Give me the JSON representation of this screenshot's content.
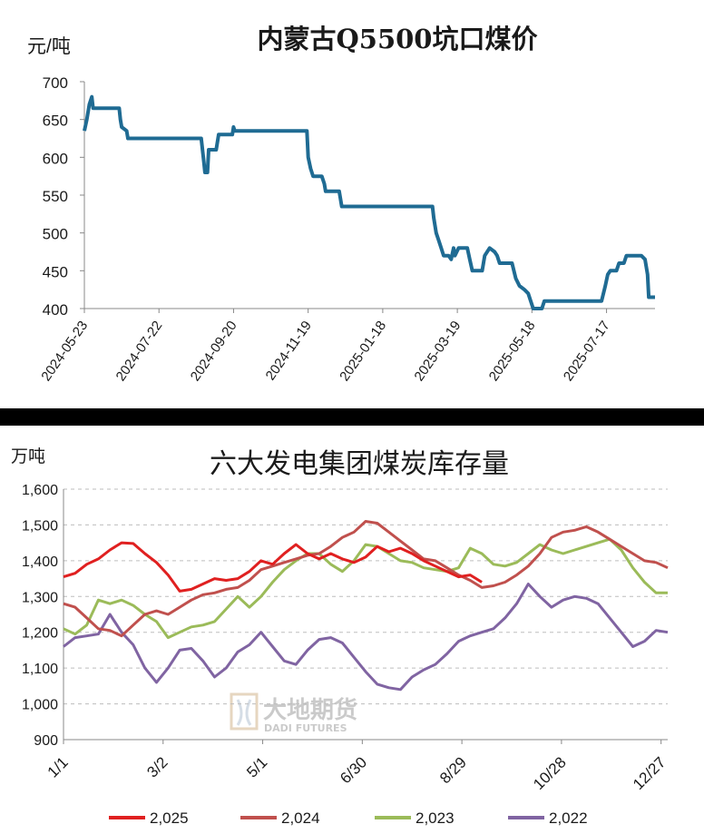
{
  "chart_data": [
    {
      "type": "line",
      "title": "内蒙古Q5500坑口煤价",
      "ylabel": "元/吨",
      "ylim": [
        400,
        700
      ],
      "yticks": [
        400,
        450,
        500,
        550,
        600,
        650,
        700
      ],
      "xticks": [
        "2024-05-23",
        "2024-07-22",
        "2024-09-20",
        "2024-11-19",
        "2025-01-18",
        "2025-03-19",
        "2025-05-18",
        "2025-07-17"
      ],
      "series_color": "#1f6b93",
      "x_start": "2024-05-23",
      "x_end": "2025-08-25",
      "points": [
        [
          "2024-05-23",
          635
        ],
        [
          "2024-05-25",
          650
        ],
        [
          "2024-05-26",
          660
        ],
        [
          "2024-05-27",
          670
        ],
        [
          "2024-05-29",
          680
        ],
        [
          "2024-05-30",
          665
        ],
        [
          "2024-06-20",
          665
        ],
        [
          "2024-06-21",
          650
        ],
        [
          "2024-06-22",
          640
        ],
        [
          "2024-06-26",
          635
        ],
        [
          "2024-06-27",
          625
        ],
        [
          "2024-08-25",
          625
        ],
        [
          "2024-08-27",
          595
        ],
        [
          "2024-08-28",
          580
        ],
        [
          "2024-08-30",
          580
        ],
        [
          "2024-08-31",
          610
        ],
        [
          "2024-09-06",
          610
        ],
        [
          "2024-09-08",
          630
        ],
        [
          "2024-09-19",
          630
        ],
        [
          "2024-09-20",
          640
        ],
        [
          "2024-09-21",
          635
        ],
        [
          "2024-11-18",
          635
        ],
        [
          "2024-11-19",
          600
        ],
        [
          "2024-11-21",
          585
        ],
        [
          "2024-11-23",
          575
        ],
        [
          "2024-11-30",
          575
        ],
        [
          "2024-12-02",
          565
        ],
        [
          "2024-12-03",
          555
        ],
        [
          "2024-12-14",
          555
        ],
        [
          "2024-12-16",
          535
        ],
        [
          "2025-02-27",
          535
        ],
        [
          "2025-02-28",
          520
        ],
        [
          "2025-03-02",
          500
        ],
        [
          "2025-03-04",
          490
        ],
        [
          "2025-03-06",
          480
        ],
        [
          "2025-03-08",
          470
        ],
        [
          "2025-03-12",
          470
        ],
        [
          "2025-03-14",
          465
        ],
        [
          "2025-03-16",
          480
        ],
        [
          "2025-03-17",
          470
        ],
        [
          "2025-03-20",
          480
        ],
        [
          "2025-03-27",
          480
        ],
        [
          "2025-03-29",
          465
        ],
        [
          "2025-03-31",
          450
        ],
        [
          "2025-04-08",
          450
        ],
        [
          "2025-04-10",
          470
        ],
        [
          "2025-04-14",
          480
        ],
        [
          "2025-04-18",
          475
        ],
        [
          "2025-04-20",
          470
        ],
        [
          "2025-04-22",
          460
        ],
        [
          "2025-05-02",
          460
        ],
        [
          "2025-05-05",
          440
        ],
        [
          "2025-05-08",
          430
        ],
        [
          "2025-05-12",
          425
        ],
        [
          "2025-05-15",
          420
        ],
        [
          "2025-05-17",
          410
        ],
        [
          "2025-05-19",
          400
        ],
        [
          "2025-05-26",
          400
        ],
        [
          "2025-05-28",
          410
        ],
        [
          "2025-07-13",
          410
        ],
        [
          "2025-07-16",
          430
        ],
        [
          "2025-07-18",
          445
        ],
        [
          "2025-07-20",
          450
        ],
        [
          "2025-07-25",
          450
        ],
        [
          "2025-07-27",
          460
        ],
        [
          "2025-07-31",
          460
        ],
        [
          "2025-08-02",
          470
        ],
        [
          "2025-08-14",
          470
        ],
        [
          "2025-08-17",
          465
        ],
        [
          "2025-08-19",
          445
        ],
        [
          "2025-08-20",
          415
        ],
        [
          "2025-08-25",
          415
        ]
      ]
    },
    {
      "type": "line",
      "title": "六大发电集团煤炭库存量",
      "ylabel": "万吨",
      "ylim": [
        900,
        1600
      ],
      "yticks": [
        "900",
        "1,000",
        "1,100",
        "1,200",
        "1,300",
        "1,400",
        "1,500",
        "1,600"
      ],
      "ytick_values": [
        900,
        1000,
        1100,
        1200,
        1300,
        1400,
        1500,
        1600
      ],
      "xticks": [
        "1/1",
        "3/2",
        "5/1",
        "6/30",
        "8/29",
        "10/28",
        "12/27"
      ],
      "xtick_days": [
        1,
        61,
        121,
        181,
        241,
        301,
        361
      ],
      "x_range_days": [
        1,
        365
      ],
      "series": [
        {
          "name": "2,025",
          "color": "#e02020",
          "points": [
            [
              1,
              1355
            ],
            [
              8,
              1365
            ],
            [
              15,
              1390
            ],
            [
              22,
              1405
            ],
            [
              29,
              1430
            ],
            [
              36,
              1450
            ],
            [
              43,
              1448
            ],
            [
              50,
              1420
            ],
            [
              57,
              1395
            ],
            [
              64,
              1360
            ],
            [
              71,
              1315
            ],
            [
              78,
              1320
            ],
            [
              85,
              1335
            ],
            [
              92,
              1350
            ],
            [
              99,
              1345
            ],
            [
              106,
              1350
            ],
            [
              113,
              1370
            ],
            [
              120,
              1400
            ],
            [
              127,
              1390
            ],
            [
              134,
              1420
            ],
            [
              141,
              1445
            ],
            [
              148,
              1420
            ],
            [
              155,
              1405
            ],
            [
              162,
              1420
            ],
            [
              169,
              1405
            ],
            [
              176,
              1395
            ],
            [
              183,
              1410
            ],
            [
              190,
              1440
            ],
            [
              197,
              1425
            ],
            [
              204,
              1435
            ],
            [
              211,
              1420
            ],
            [
              218,
              1400
            ],
            [
              225,
              1385
            ],
            [
              232,
              1370
            ],
            [
              239,
              1355
            ],
            [
              246,
              1360
            ],
            [
              253,
              1340
            ]
          ]
        },
        {
          "name": "2,024",
          "color": "#c0504d",
          "points": [
            [
              1,
              1280
            ],
            [
              8,
              1270
            ],
            [
              15,
              1240
            ],
            [
              22,
              1210
            ],
            [
              29,
              1205
            ],
            [
              36,
              1190
            ],
            [
              43,
              1220
            ],
            [
              50,
              1250
            ],
            [
              57,
              1260
            ],
            [
              64,
              1250
            ],
            [
              71,
              1270
            ],
            [
              78,
              1290
            ],
            [
              85,
              1305
            ],
            [
              92,
              1310
            ],
            [
              99,
              1320
            ],
            [
              106,
              1325
            ],
            [
              113,
              1345
            ],
            [
              120,
              1375
            ],
            [
              127,
              1385
            ],
            [
              134,
              1395
            ],
            [
              141,
              1405
            ],
            [
              148,
              1415
            ],
            [
              155,
              1420
            ],
            [
              162,
              1440
            ],
            [
              169,
              1465
            ],
            [
              176,
              1480
            ],
            [
              183,
              1510
            ],
            [
              190,
              1505
            ],
            [
              197,
              1480
            ],
            [
              204,
              1455
            ],
            [
              211,
              1430
            ],
            [
              218,
              1405
            ],
            [
              225,
              1400
            ],
            [
              232,
              1380
            ],
            [
              239,
              1360
            ],
            [
              246,
              1345
            ],
            [
              253,
              1325
            ],
            [
              260,
              1330
            ],
            [
              267,
              1340
            ],
            [
              274,
              1360
            ],
            [
              281,
              1385
            ],
            [
              288,
              1420
            ],
            [
              295,
              1465
            ],
            [
              302,
              1480
            ],
            [
              309,
              1485
            ],
            [
              316,
              1495
            ],
            [
              323,
              1480
            ],
            [
              330,
              1460
            ],
            [
              337,
              1440
            ],
            [
              344,
              1420
            ],
            [
              351,
              1400
            ],
            [
              358,
              1395
            ],
            [
              365,
              1380
            ]
          ]
        },
        {
          "name": "2,023",
          "color": "#9bbb59",
          "points": [
            [
              1,
              1210
            ],
            [
              8,
              1195
            ],
            [
              15,
              1220
            ],
            [
              22,
              1290
            ],
            [
              29,
              1280
            ],
            [
              36,
              1290
            ],
            [
              43,
              1275
            ],
            [
              50,
              1250
            ],
            [
              57,
              1230
            ],
            [
              64,
              1185
            ],
            [
              71,
              1200
            ],
            [
              78,
              1215
            ],
            [
              85,
              1220
            ],
            [
              92,
              1230
            ],
            [
              99,
              1265
            ],
            [
              106,
              1300
            ],
            [
              113,
              1270
            ],
            [
              120,
              1300
            ],
            [
              127,
              1340
            ],
            [
              134,
              1375
            ],
            [
              141,
              1400
            ],
            [
              148,
              1420
            ],
            [
              155,
              1420
            ],
            [
              162,
              1390
            ],
            [
              169,
              1370
            ],
            [
              176,
              1400
            ],
            [
              183,
              1445
            ],
            [
              190,
              1440
            ],
            [
              197,
              1420
            ],
            [
              204,
              1400
            ],
            [
              211,
              1395
            ],
            [
              218,
              1380
            ],
            [
              225,
              1375
            ],
            [
              232,
              1370
            ],
            [
              239,
              1380
            ],
            [
              246,
              1435
            ],
            [
              253,
              1420
            ],
            [
              260,
              1390
            ],
            [
              267,
              1385
            ],
            [
              274,
              1395
            ],
            [
              281,
              1420
            ],
            [
              288,
              1445
            ],
            [
              295,
              1430
            ],
            [
              302,
              1420
            ],
            [
              309,
              1430
            ],
            [
              316,
              1440
            ],
            [
              323,
              1450
            ],
            [
              330,
              1460
            ],
            [
              337,
              1430
            ],
            [
              344,
              1380
            ],
            [
              351,
              1340
            ],
            [
              358,
              1310
            ],
            [
              365,
              1310
            ]
          ]
        },
        {
          "name": "2,022",
          "color": "#8064a2",
          "points": [
            [
              1,
              1160
            ],
            [
              8,
              1185
            ],
            [
              15,
              1190
            ],
            [
              22,
              1195
            ],
            [
              29,
              1250
            ],
            [
              36,
              1200
            ],
            [
              43,
              1165
            ],
            [
              50,
              1100
            ],
            [
              57,
              1060
            ],
            [
              64,
              1100
            ],
            [
              71,
              1150
            ],
            [
              78,
              1155
            ],
            [
              85,
              1120
            ],
            [
              92,
              1075
            ],
            [
              99,
              1100
            ],
            [
              106,
              1145
            ],
            [
              113,
              1165
            ],
            [
              120,
              1200
            ],
            [
              127,
              1160
            ],
            [
              134,
              1120
            ],
            [
              141,
              1110
            ],
            [
              148,
              1150
            ],
            [
              155,
              1180
            ],
            [
              162,
              1185
            ],
            [
              169,
              1170
            ],
            [
              176,
              1130
            ],
            [
              183,
              1090
            ],
            [
              190,
              1055
            ],
            [
              197,
              1045
            ],
            [
              204,
              1040
            ],
            [
              211,
              1075
            ],
            [
              218,
              1095
            ],
            [
              225,
              1110
            ],
            [
              232,
              1140
            ],
            [
              239,
              1175
            ],
            [
              246,
              1190
            ],
            [
              253,
              1200
            ],
            [
              260,
              1210
            ],
            [
              267,
              1240
            ],
            [
              274,
              1280
            ],
            [
              281,
              1335
            ],
            [
              288,
              1300
            ],
            [
              295,
              1270
            ],
            [
              302,
              1290
            ],
            [
              309,
              1300
            ],
            [
              316,
              1295
            ],
            [
              323,
              1280
            ],
            [
              330,
              1240
            ],
            [
              337,
              1200
            ],
            [
              344,
              1160
            ],
            [
              351,
              1175
            ],
            [
              358,
              1205
            ],
            [
              365,
              1200
            ]
          ]
        }
      ]
    }
  ],
  "watermark": {
    "text_cn": "大地期货",
    "text_en": "DADI FUTURES"
  }
}
